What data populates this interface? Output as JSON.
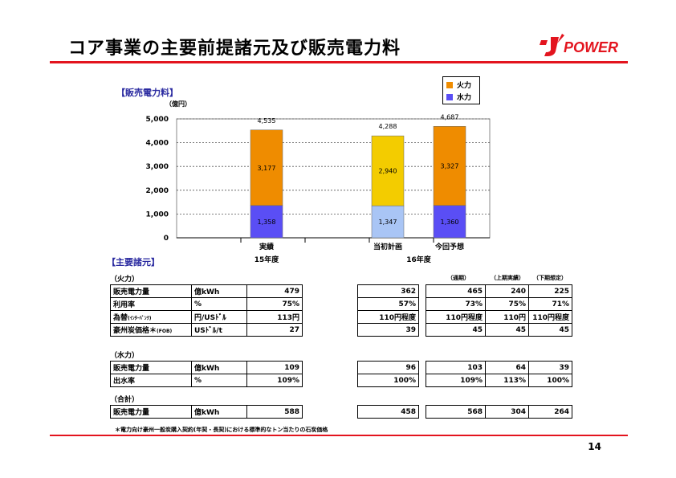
{
  "header": {
    "title": "コア事業の主要前提諸元及び販売電力料",
    "logo_text": "POWER"
  },
  "colors": {
    "fire": "#ef8c00",
    "hydro": "#5a4ef5",
    "fire_plan": "#f3cc00",
    "hydro_plan": "#a9c5f5",
    "accent_red": "#e3141e",
    "section_blue": "#2a2aa0"
  },
  "chart_section": {
    "heading": "【販売電力料】",
    "unit": "（億円）"
  },
  "chart_data": {
    "type": "bar",
    "stacked": true,
    "categories": [
      "実績",
      "当初計画",
      "今回予想"
    ],
    "category_groups": [
      {
        "label": "15年度",
        "categories": [
          "実績"
        ]
      },
      {
        "label": "16年度",
        "categories": [
          "当初計画",
          "今回予想"
        ]
      }
    ],
    "series": [
      {
        "name": "水力",
        "values": [
          1358,
          1347,
          1360
        ]
      },
      {
        "name": "火力",
        "values": [
          3177,
          2940,
          3327
        ]
      }
    ],
    "value_labels": {
      "hydro": [
        "1,358",
        "1,347",
        "1,360"
      ],
      "fire": [
        "3,177",
        "2,940",
        "3,327"
      ],
      "totals": [
        "4,535",
        "4,288",
        "4,687"
      ]
    },
    "yticks": [
      "0",
      "1,000",
      "2,000",
      "3,000",
      "4,000",
      "5,000"
    ],
    "ylim": [
      0,
      5000
    ],
    "grid": true,
    "legend": "top-right"
  },
  "params": {
    "heading": "【主要諸元】",
    "col_headers": {
      "full_year": "（通期）",
      "first_half": "（上期実績）",
      "second_half": "（下期想定）"
    },
    "groups": [
      {
        "label": "（火力）",
        "rows": [
          {
            "name": "販売電力量",
            "unit": "億kWh",
            "actual": "479",
            "plan": "362",
            "full": "465",
            "h1": "240",
            "h2": "225"
          },
          {
            "name": "利用率",
            "unit": "%",
            "actual": "75%",
            "plan": "57%",
            "full": "73%",
            "h1": "75%",
            "h2": "71%"
          },
          {
            "name": "為替",
            "name_note": "(ｲﾝﾀｰﾊﾞﾝｸ)",
            "unit": "円/USﾄﾞﾙ",
            "actual": "113円",
            "plan": "110円程度",
            "full": "110円程度",
            "h1": "110円",
            "h2": "110円程度"
          },
          {
            "name": "豪州炭価格＊",
            "name_note": "(FOB)",
            "unit": "USﾄﾞﾙ/t",
            "actual": "27",
            "plan": "39",
            "full": "45",
            "h1": "45",
            "h2": "45"
          }
        ]
      },
      {
        "label": "（水力）",
        "rows": [
          {
            "name": "販売電力量",
            "unit": "億kWh",
            "actual": "109",
            "plan": "96",
            "full": "103",
            "h1": "64",
            "h2": "39"
          },
          {
            "name": "出水率",
            "unit": "%",
            "actual": "109%",
            "plan": "100%",
            "full": "109%",
            "h1": "113%",
            "h2": "100%"
          }
        ]
      },
      {
        "label": "（合計）",
        "rows": [
          {
            "name": "販売電力量",
            "unit": "億kWh",
            "actual": "588",
            "plan": "458",
            "full": "568",
            "h1": "304",
            "h2": "264"
          }
        ]
      }
    ]
  },
  "footnote": "＊電力向け豪州一般炭購入契約(年契・長契)における標準的なトン当たりの石炭価格",
  "page_number": "14"
}
